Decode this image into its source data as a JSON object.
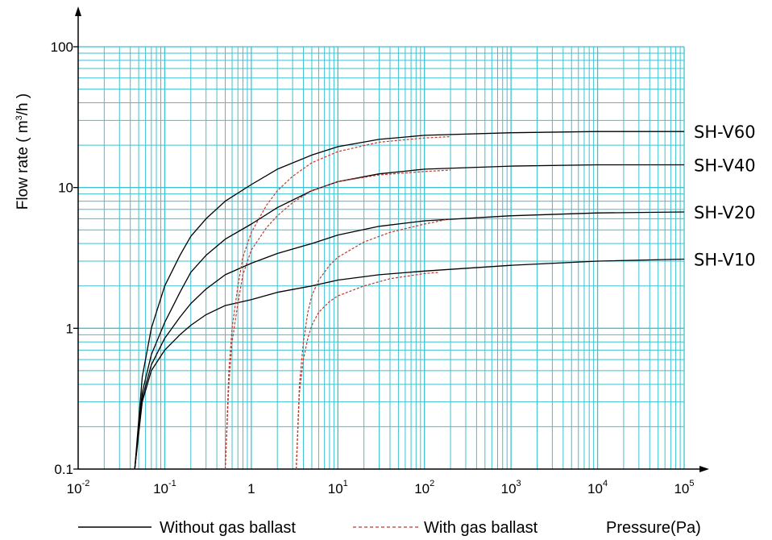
{
  "chart_data": {
    "type": "line",
    "x_scale": "log",
    "y_scale": "log",
    "xlim": [
      0.01,
      100000
    ],
    "ylim": [
      0.1,
      100
    ],
    "grid": true,
    "colors": {
      "grid": "#3fc1d0",
      "without": "#000000",
      "with": "#c0392b"
    },
    "ylabel": {
      "prefix": "Flow rate ( m",
      "sup": "3",
      "suffix": "/h )"
    },
    "xlabel": "Pressure(Pa)",
    "y_ticks": [
      {
        "value": 0.1,
        "label": "0.1"
      },
      {
        "value": 1,
        "label": "1"
      },
      {
        "value": 10,
        "label": "10"
      },
      {
        "value": 100,
        "label": "100"
      }
    ],
    "x_ticks": [
      {
        "value": 0.01,
        "base": "10",
        "exp": "-2"
      },
      {
        "value": 0.1,
        "base": "10",
        "exp": "-1"
      },
      {
        "value": 1,
        "base": "1",
        "exp": ""
      },
      {
        "value": 10,
        "base": "10",
        "exp": "1"
      },
      {
        "value": 100,
        "base": "10",
        "exp": "2"
      },
      {
        "value": 1000,
        "base": "10",
        "exp": "3"
      },
      {
        "value": 10000,
        "base": "10",
        "exp": "4"
      },
      {
        "value": 100000,
        "base": "10",
        "exp": "5"
      }
    ],
    "legend": [
      {
        "label": "Without gas ballast",
        "style": "solid"
      },
      {
        "label": "With gas ballast",
        "style": "dashed"
      }
    ],
    "series": [
      {
        "name": "SH-V60",
        "ballast": false,
        "points": [
          [
            0.045,
            0.1
          ],
          [
            0.055,
            0.45
          ],
          [
            0.07,
            1.0
          ],
          [
            0.1,
            2.0
          ],
          [
            0.15,
            3.3
          ],
          [
            0.2,
            4.5
          ],
          [
            0.3,
            6.0
          ],
          [
            0.5,
            8.0
          ],
          [
            1,
            10.5
          ],
          [
            2,
            13.5
          ],
          [
            5,
            17
          ],
          [
            10,
            19.5
          ],
          [
            30,
            22
          ],
          [
            100,
            23.5
          ],
          [
            1000,
            24.5
          ],
          [
            10000,
            25
          ],
          [
            100000,
            25
          ]
        ]
      },
      {
        "name": "SH-V40",
        "ballast": false,
        "points": [
          [
            0.045,
            0.1
          ],
          [
            0.055,
            0.35
          ],
          [
            0.07,
            0.65
          ],
          [
            0.1,
            1.1
          ],
          [
            0.15,
            1.8
          ],
          [
            0.2,
            2.5
          ],
          [
            0.3,
            3.3
          ],
          [
            0.5,
            4.3
          ],
          [
            1,
            5.5
          ],
          [
            2,
            7.2
          ],
          [
            5,
            9.5
          ],
          [
            10,
            11
          ],
          [
            30,
            12.5
          ],
          [
            100,
            13.5
          ],
          [
            1000,
            14.2
          ],
          [
            10000,
            14.5
          ],
          [
            100000,
            14.5
          ]
        ]
      },
      {
        "name": "SH-V20",
        "ballast": false,
        "points": [
          [
            0.045,
            0.1
          ],
          [
            0.055,
            0.32
          ],
          [
            0.07,
            0.55
          ],
          [
            0.1,
            0.85
          ],
          [
            0.15,
            1.2
          ],
          [
            0.2,
            1.5
          ],
          [
            0.3,
            1.9
          ],
          [
            0.5,
            2.4
          ],
          [
            1,
            2.9
          ],
          [
            2,
            3.4
          ],
          [
            5,
            4.0
          ],
          [
            10,
            4.6
          ],
          [
            30,
            5.3
          ],
          [
            100,
            5.8
          ],
          [
            1000,
            6.3
          ],
          [
            10000,
            6.6
          ],
          [
            100000,
            6.7
          ]
        ]
      },
      {
        "name": "SH-V10",
        "ballast": false,
        "points": [
          [
            0.045,
            0.1
          ],
          [
            0.055,
            0.3
          ],
          [
            0.07,
            0.5
          ],
          [
            0.1,
            0.7
          ],
          [
            0.15,
            0.9
          ],
          [
            0.2,
            1.05
          ],
          [
            0.3,
            1.25
          ],
          [
            0.5,
            1.45
          ],
          [
            1,
            1.6
          ],
          [
            2,
            1.8
          ],
          [
            5,
            2.0
          ],
          [
            10,
            2.2
          ],
          [
            30,
            2.4
          ],
          [
            100,
            2.55
          ],
          [
            1000,
            2.8
          ],
          [
            10000,
            3.0
          ],
          [
            100000,
            3.1
          ]
        ]
      },
      {
        "name": "SH-V60",
        "ballast": true,
        "points": [
          [
            0.5,
            0.1
          ],
          [
            0.55,
            0.5
          ],
          [
            0.6,
            1.0
          ],
          [
            0.7,
            2.0
          ],
          [
            0.8,
            3.2
          ],
          [
            1,
            4.8
          ],
          [
            1.5,
            7.5
          ],
          [
            2,
            9.5
          ],
          [
            3,
            12
          ],
          [
            5,
            15
          ],
          [
            10,
            18
          ],
          [
            30,
            21
          ],
          [
            100,
            22.5
          ],
          [
            200,
            23
          ]
        ]
      },
      {
        "name": "SH-V40",
        "ballast": true,
        "points": [
          [
            0.5,
            0.1
          ],
          [
            0.55,
            0.4
          ],
          [
            0.6,
            0.8
          ],
          [
            0.7,
            1.5
          ],
          [
            0.8,
            2.4
          ],
          [
            1,
            3.6
          ],
          [
            1.5,
            5.2
          ],
          [
            2,
            6.3
          ],
          [
            3,
            7.8
          ],
          [
            5,
            9.5
          ],
          [
            10,
            11
          ],
          [
            30,
            12.3
          ],
          [
            100,
            13
          ],
          [
            200,
            13.3
          ]
        ]
      },
      {
        "name": "SH-V20",
        "ballast": true,
        "points": [
          [
            3.3,
            0.1
          ],
          [
            3.6,
            0.4
          ],
          [
            4,
            0.8
          ],
          [
            4.5,
            1.3
          ],
          [
            5,
            1.7
          ],
          [
            6,
            2.2
          ],
          [
            8,
            2.8
          ],
          [
            10,
            3.2
          ],
          [
            20,
            4.1
          ],
          [
            40,
            4.8
          ],
          [
            100,
            5.5
          ],
          [
            200,
            6.0
          ]
        ]
      },
      {
        "name": "SH-V10",
        "ballast": true,
        "points": [
          [
            3.3,
            0.1
          ],
          [
            3.6,
            0.35
          ],
          [
            4,
            0.6
          ],
          [
            4.5,
            0.85
          ],
          [
            5,
            1.05
          ],
          [
            6,
            1.3
          ],
          [
            8,
            1.55
          ],
          [
            10,
            1.7
          ],
          [
            20,
            2.0
          ],
          [
            40,
            2.25
          ],
          [
            100,
            2.45
          ],
          [
            150,
            2.5
          ]
        ]
      }
    ],
    "end_labels": [
      {
        "text": "SH-V60",
        "value": 25
      },
      {
        "text": "SH-V40",
        "value": 14.5
      },
      {
        "text": "SH-V20",
        "value": 6.7
      },
      {
        "text": "SH-V10",
        "value": 3.1
      }
    ]
  }
}
